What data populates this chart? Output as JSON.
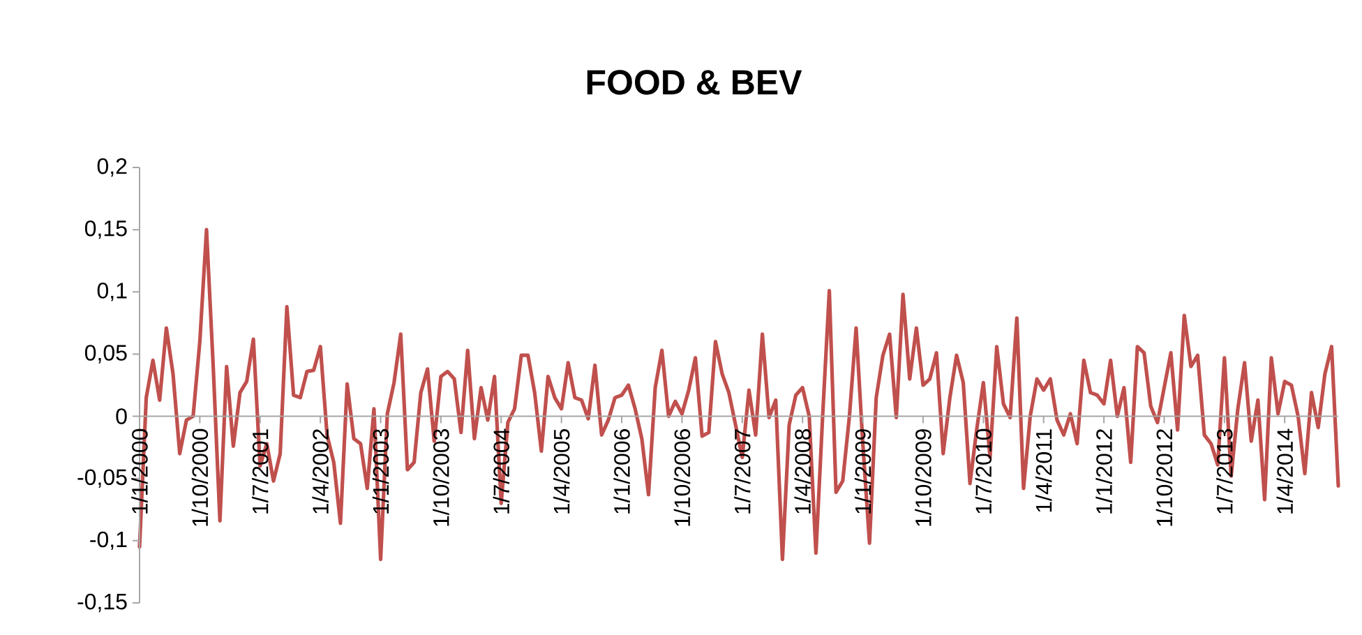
{
  "chart_data": {
    "type": "line",
    "title": "FOOD & BEV",
    "x": [
      "2000-01",
      "2000-02",
      "2000-03",
      "2000-04",
      "2000-05",
      "2000-06",
      "2000-07",
      "2000-08",
      "2000-09",
      "2000-10",
      "2000-11",
      "2000-12",
      "2001-01",
      "2001-02",
      "2001-03",
      "2001-04",
      "2001-05",
      "2001-06",
      "2001-07",
      "2001-08",
      "2001-09",
      "2001-10",
      "2001-11",
      "2001-12",
      "2002-01",
      "2002-02",
      "2002-03",
      "2002-04",
      "2002-05",
      "2002-06",
      "2002-07",
      "2002-08",
      "2002-09",
      "2002-10",
      "2002-11",
      "2002-12",
      "2003-01",
      "2003-02",
      "2003-03",
      "2003-04",
      "2003-05",
      "2003-06",
      "2003-07",
      "2003-08",
      "2003-09",
      "2003-10",
      "2003-11",
      "2003-12",
      "2004-01",
      "2004-02",
      "2004-03",
      "2004-04",
      "2004-05",
      "2004-06",
      "2004-07",
      "2004-08",
      "2004-09",
      "2004-10",
      "2004-11",
      "2004-12",
      "2005-01",
      "2005-02",
      "2005-03",
      "2005-04",
      "2005-05",
      "2005-06",
      "2005-07",
      "2005-08",
      "2005-09",
      "2005-10",
      "2005-11",
      "2005-12",
      "2006-01",
      "2006-02",
      "2006-03",
      "2006-04",
      "2006-05",
      "2006-06",
      "2006-07",
      "2006-08",
      "2006-09",
      "2006-10",
      "2006-11",
      "2006-12",
      "2007-01",
      "2007-02",
      "2007-03",
      "2007-04",
      "2007-05",
      "2007-06",
      "2007-07",
      "2007-08",
      "2007-09",
      "2007-10",
      "2007-11",
      "2007-12",
      "2008-01",
      "2008-02",
      "2008-03",
      "2008-04",
      "2008-05",
      "2008-06",
      "2008-07",
      "2008-08",
      "2008-09",
      "2008-10",
      "2008-11",
      "2008-12",
      "2009-01",
      "2009-02",
      "2009-03",
      "2009-04",
      "2009-05",
      "2009-06",
      "2009-07",
      "2009-08",
      "2009-09",
      "2009-10",
      "2009-11",
      "2009-12",
      "2010-01",
      "2010-02",
      "2010-03",
      "2010-04",
      "2010-05",
      "2010-06",
      "2010-07",
      "2010-08",
      "2010-09",
      "2010-10",
      "2010-11",
      "2010-12",
      "2011-01",
      "2011-02",
      "2011-03",
      "2011-04",
      "2011-05",
      "2011-06",
      "2011-07",
      "2011-08",
      "2011-09",
      "2011-10",
      "2011-11",
      "2011-12",
      "2012-01",
      "2012-02",
      "2012-03",
      "2012-04",
      "2012-05",
      "2012-06",
      "2012-07",
      "2012-08",
      "2012-09",
      "2012-10",
      "2012-11",
      "2012-12",
      "2013-01",
      "2013-02",
      "2013-03",
      "2013-04",
      "2013-05",
      "2013-06",
      "2013-07",
      "2013-08",
      "2013-09",
      "2013-10",
      "2013-11",
      "2013-12",
      "2014-01",
      "2014-02",
      "2014-03",
      "2014-04",
      "2014-05",
      "2014-06",
      "2014-07",
      "2014-08",
      "2014-09",
      "2014-10",
      "2014-11",
      "2014-12"
    ],
    "series": [
      {
        "color": "#c0504d",
        "values": [
          -0.105,
          0.015,
          0.045,
          0.013,
          0.071,
          0.034,
          -0.03,
          -0.003,
          0.0,
          0.06,
          0.15,
          0.04,
          -0.084,
          0.04,
          -0.024,
          0.019,
          0.028,
          0.062,
          -0.04,
          -0.022,
          -0.052,
          -0.03,
          0.088,
          0.017,
          0.015,
          0.036,
          0.037,
          0.056,
          -0.015,
          -0.037,
          -0.086,
          0.026,
          -0.018,
          -0.022,
          -0.058,
          0.006,
          -0.115,
          0.002,
          0.027,
          0.066,
          -0.043,
          -0.037,
          0.019,
          0.038,
          -0.02,
          0.032,
          0.036,
          0.03,
          -0.013,
          0.053,
          -0.018,
          0.023,
          -0.003,
          0.032,
          -0.07,
          -0.005,
          0.006,
          0.049,
          0.049,
          0.019,
          -0.028,
          0.032,
          0.015,
          0.006,
          0.043,
          0.015,
          0.013,
          -0.002,
          0.041,
          -0.015,
          -0.003,
          0.015,
          0.017,
          0.025,
          0.006,
          -0.018,
          -0.063,
          0.023,
          0.053,
          0.0,
          0.012,
          0.002,
          0.021,
          0.047,
          -0.016,
          -0.013,
          0.06,
          0.034,
          0.019,
          -0.007,
          -0.033,
          0.021,
          -0.015,
          0.066,
          -0.001,
          0.013,
          -0.115,
          -0.007,
          0.017,
          0.023,
          0.0,
          -0.11,
          0.0,
          0.101,
          -0.061,
          -0.052,
          0.0,
          0.071,
          -0.022,
          -0.102,
          0.015,
          0.049,
          0.066,
          -0.001,
          0.098,
          0.03,
          0.071,
          0.025,
          0.03,
          0.051,
          -0.03,
          0.015,
          0.049,
          0.027,
          -0.054,
          -0.011,
          0.027,
          -0.033,
          0.056,
          0.01,
          -0.001,
          0.079,
          -0.058,
          0.0,
          0.03,
          0.021,
          0.03,
          -0.003,
          -0.015,
          0.002,
          -0.022,
          0.045,
          0.019,
          0.017,
          0.01,
          0.045,
          0.0,
          0.023,
          -0.037,
          0.056,
          0.051,
          0.008,
          -0.005,
          0.023,
          0.051,
          -0.011,
          0.081,
          0.04,
          0.049,
          -0.015,
          -0.022,
          -0.039,
          0.047,
          -0.048,
          0.006,
          0.043,
          -0.02,
          0.013,
          -0.067,
          0.047,
          0.002,
          0.028,
          0.025,
          0.0,
          -0.046,
          0.019,
          -0.009,
          0.034,
          0.056,
          -0.056
        ]
      }
    ],
    "xlim": [
      "2000-01",
      "2014-12"
    ],
    "xticks": [
      {
        "value": "2000-01",
        "label": "1/1/2000"
      },
      {
        "value": "2000-10",
        "label": "1/10/2000"
      },
      {
        "value": "2001-07",
        "label": "1/7/2001"
      },
      {
        "value": "2002-04",
        "label": "1/4/2002"
      },
      {
        "value": "2003-01",
        "label": "1/1/2003"
      },
      {
        "value": "2003-10",
        "label": "1/10/2003"
      },
      {
        "value": "2004-07",
        "label": "1/7/2004"
      },
      {
        "value": "2005-04",
        "label": "1/4/2005"
      },
      {
        "value": "2006-01",
        "label": "1/1/2006"
      },
      {
        "value": "2006-10",
        "label": "1/10/2006"
      },
      {
        "value": "2007-07",
        "label": "1/7/2007"
      },
      {
        "value": "2008-04",
        "label": "1/4/2008"
      },
      {
        "value": "2009-01",
        "label": "1/1/2009"
      },
      {
        "value": "2009-10",
        "label": "1/10/2009"
      },
      {
        "value": "2010-07",
        "label": "1/7/2010"
      },
      {
        "value": "2011-04",
        "label": "1/4/2011"
      },
      {
        "value": "2012-01",
        "label": "1/1/2012"
      },
      {
        "value": "2012-10",
        "label": "1/10/2012"
      },
      {
        "value": "2013-07",
        "label": "1/7/2013"
      },
      {
        "value": "2014-04",
        "label": "1/4/2014"
      }
    ],
    "ylim": [
      -0.15,
      0.2
    ],
    "yticks": [
      {
        "value": -0.15,
        "label": "-0,15"
      },
      {
        "value": -0.1,
        "label": "-0,1"
      },
      {
        "value": -0.05,
        "label": "-0,05"
      },
      {
        "value": 0,
        "label": "0"
      },
      {
        "value": 0.05,
        "label": "0,05"
      },
      {
        "value": 0.1,
        "label": "0,1"
      },
      {
        "value": 0.15,
        "label": "0,15"
      },
      {
        "value": 0.2,
        "label": "0,2"
      }
    ],
    "marker": "none",
    "line_style": "solid"
  }
}
